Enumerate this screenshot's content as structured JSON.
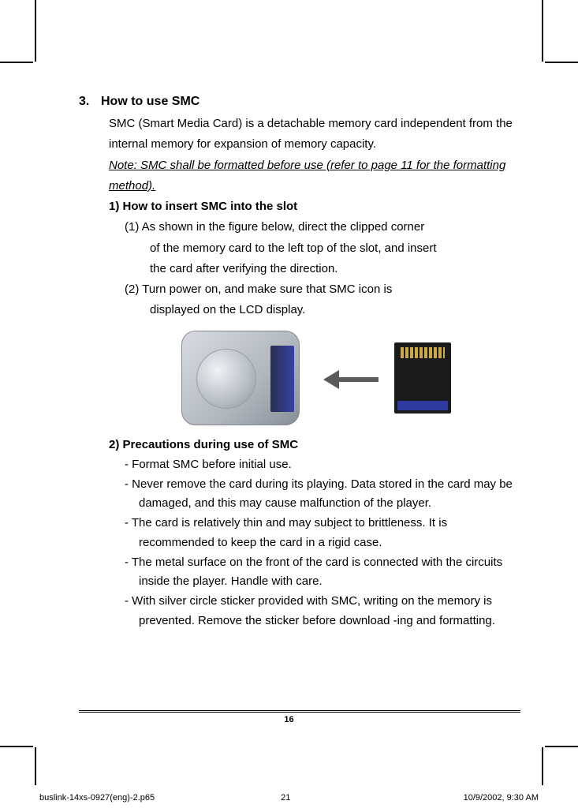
{
  "section": {
    "number": "3.",
    "title": "How to use SMC",
    "intro": "SMC (Smart Media Card) is a detachable memory card independent from the internal memory for expansion of memory capacity.",
    "note": "Note: SMC shall be formatted before use (refer to page 11 for the formatting method).",
    "sub1": {
      "title": "1) How to insert SMC into the slot",
      "step1_lead": "(1) As shown in the figure below, direct the clipped corner",
      "step1_cont1": "of the memory card to the left top of the slot, and insert",
      "step1_cont2": "the card after verifying the direction.",
      "step2_lead": "(2) Turn power on, and make sure that SMC icon is",
      "step2_cont1": "displayed on the LCD display."
    },
    "sub2": {
      "title": "2) Precautions during use of SMC",
      "bullets": [
        "-  Format SMC before initial use.",
        "-  Never remove the card during its playing. Data stored in the card may be damaged, and this may cause malfunction of the player.",
        "-  The card is relatively thin and may subject to brittleness. It is recommended to keep the card in a rigid case.",
        "-  The metal surface on the front of the card is connected with the circuits inside the player. Handle with care.",
        "-  With silver circle sticker provided with SMC, writing on the memory is prevented. Remove the sticker before download -ing and formatting."
      ]
    }
  },
  "figure": {
    "device_body_gradient": "#d8dce0",
    "slot_color": "#3842a0",
    "arrow_color": "#5a5a5a",
    "card_color": "#1a1a1a",
    "card_label_color": "#2e3a9e"
  },
  "page_number": "16",
  "footer": {
    "filename": "buslink-14xs-0927(eng)-2.p65",
    "sheet": "21",
    "timestamp": "10/9/2002, 9:30 AM"
  }
}
